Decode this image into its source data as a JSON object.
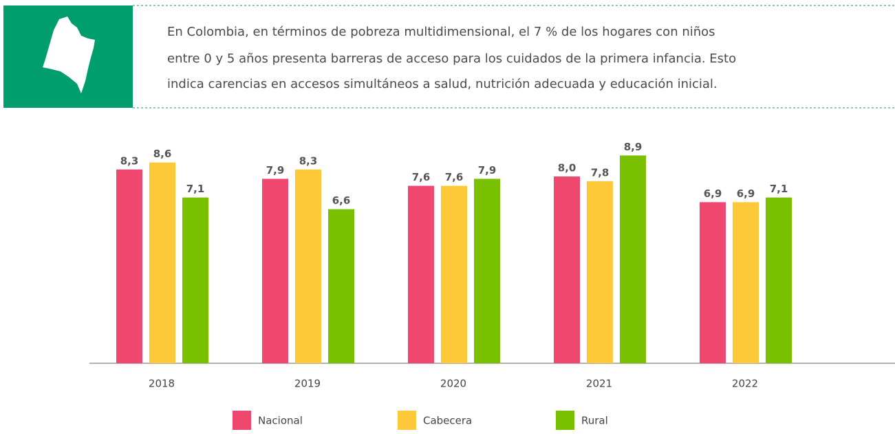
{
  "header": {
    "text_lines": [
      "En Colombia, en términos de pobreza multidimensional, el 7 % de los hogares con niños",
      "entre 0 y 5 años presenta barreras de acceso para los cuidados de la primera infancia. Esto",
      "indica carencias en accesos simultáneos a salud, nutrición adecuada y educación inicial."
    ]
  },
  "chart_data": {
    "type": "bar",
    "categories": [
      "2018",
      "2019",
      "2020",
      "2021",
      "2022"
    ],
    "series": [
      {
        "name": "Nacional",
        "color": "#f0476f",
        "values": [
          8.3,
          7.9,
          7.6,
          8.0,
          6.9
        ],
        "value_labels": [
          "8,3",
          "7,9",
          "7,6",
          "8,0",
          "6,9"
        ]
      },
      {
        "name": "Cabecera",
        "color": "#fdc938",
        "values": [
          8.6,
          8.3,
          7.6,
          7.8,
          6.9
        ],
        "value_labels": [
          "8,6",
          "8,3",
          "7,6",
          "7,8",
          "6,9"
        ]
      },
      {
        "name": "Rural",
        "color": "#79c000",
        "values": [
          7.1,
          6.6,
          7.9,
          8.9,
          7.1
        ],
        "value_labels": [
          "7,1",
          "6,6",
          "7,9",
          "8,9",
          "7,1"
        ]
      }
    ],
    "ylim": [
      0,
      10
    ]
  }
}
